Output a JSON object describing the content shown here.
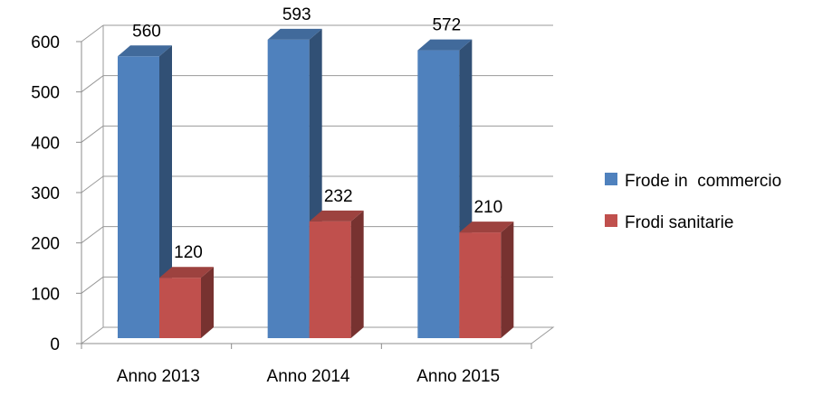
{
  "chart_data": {
    "type": "bar",
    "style": "3d-clustered-column",
    "categories": [
      "Anno 2013",
      "Anno 2014",
      "Anno 2015"
    ],
    "series": [
      {
        "name": "Frode in  commercio",
        "values": [
          560,
          593,
          572
        ],
        "labels": [
          "560",
          "593",
          "572"
        ],
        "color": "#4f81bd"
      },
      {
        "name": "Frodi sanitarie",
        "values": [
          120,
          232,
          210
        ],
        "labels": [
          "120",
          "232",
          "210"
        ],
        "color": "#c0504d"
      }
    ],
    "yticks": [
      "0",
      "100",
      "200",
      "300",
      "400",
      "500",
      "600"
    ],
    "ylim": [
      0,
      600
    ],
    "grid": true,
    "legend_position": "right"
  }
}
